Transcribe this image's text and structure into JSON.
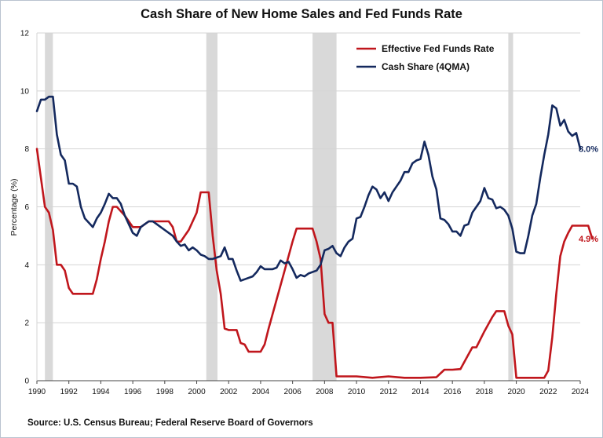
{
  "chart_data": {
    "type": "line",
    "title": "Cash Share of New Home Sales and Fed Funds Rate",
    "ylabel": "Percentage (%)",
    "xlabel": "",
    "xlim": [
      1990,
      2024
    ],
    "ylim": [
      0,
      12
    ],
    "x_ticks": [
      "1990",
      "1992",
      "1994",
      "1996",
      "1998",
      "2000",
      "2002",
      "2004",
      "2006",
      "2008",
      "2010",
      "2012",
      "2014",
      "2016",
      "2018",
      "2020",
      "2022",
      "2024"
    ],
    "y_ticks": [
      "0",
      "2",
      "4",
      "6",
      "8",
      "10",
      "12"
    ],
    "grid": "horizontal",
    "legend": "top-right",
    "recessions": [
      [
        1990.5,
        1991.0
      ],
      [
        2000.6,
        2001.3
      ],
      [
        2007.25,
        2008.75
      ],
      [
        2019.5,
        2019.8
      ]
    ],
    "series": [
      {
        "name": "Effective Fed Funds Rate",
        "color": "#c0161c",
        "end_label": "4.9%",
        "points": [
          [
            1990.0,
            8.0
          ],
          [
            1990.25,
            7.0
          ],
          [
            1990.5,
            6.0
          ],
          [
            1990.75,
            5.8
          ],
          [
            1991.0,
            5.2
          ],
          [
            1991.25,
            4.0
          ],
          [
            1991.5,
            4.0
          ],
          [
            1991.75,
            3.8
          ],
          [
            1992.0,
            3.2
          ],
          [
            1992.25,
            3.0
          ],
          [
            1992.5,
            3.0
          ],
          [
            1993.0,
            3.0
          ],
          [
            1993.5,
            3.0
          ],
          [
            1993.75,
            3.5
          ],
          [
            1994.0,
            4.2
          ],
          [
            1994.25,
            4.8
          ],
          [
            1994.5,
            5.5
          ],
          [
            1994.75,
            6.0
          ],
          [
            1995.0,
            6.0
          ],
          [
            1995.5,
            5.7
          ],
          [
            1996.0,
            5.3
          ],
          [
            1996.5,
            5.3
          ],
          [
            1997.0,
            5.5
          ],
          [
            1997.5,
            5.5
          ],
          [
            1998.0,
            5.5
          ],
          [
            1998.25,
            5.5
          ],
          [
            1998.5,
            5.3
          ],
          [
            1998.75,
            4.8
          ],
          [
            1999.0,
            4.8
          ],
          [
            1999.5,
            5.2
          ],
          [
            2000.0,
            5.8
          ],
          [
            2000.25,
            6.5
          ],
          [
            2000.5,
            6.5
          ],
          [
            2000.75,
            6.5
          ],
          [
            2001.0,
            5.0
          ],
          [
            2001.25,
            3.8
          ],
          [
            2001.5,
            3.0
          ],
          [
            2001.75,
            1.8
          ],
          [
            2002.0,
            1.75
          ],
          [
            2002.5,
            1.75
          ],
          [
            2002.75,
            1.3
          ],
          [
            2003.0,
            1.25
          ],
          [
            2003.25,
            1.0
          ],
          [
            2003.5,
            1.0
          ],
          [
            2004.0,
            1.0
          ],
          [
            2004.25,
            1.25
          ],
          [
            2004.5,
            1.8
          ],
          [
            2005.0,
            2.8
          ],
          [
            2005.5,
            3.8
          ],
          [
            2006.0,
            4.8
          ],
          [
            2006.25,
            5.25
          ],
          [
            2006.5,
            5.25
          ],
          [
            2007.0,
            5.25
          ],
          [
            2007.25,
            5.25
          ],
          [
            2007.5,
            4.8
          ],
          [
            2007.75,
            4.2
          ],
          [
            2008.0,
            2.3
          ],
          [
            2008.25,
            2.0
          ],
          [
            2008.5,
            2.0
          ],
          [
            2008.75,
            0.15
          ],
          [
            2009.0,
            0.15
          ],
          [
            2010.0,
            0.15
          ],
          [
            2011.0,
            0.1
          ],
          [
            2012.0,
            0.15
          ],
          [
            2013.0,
            0.1
          ],
          [
            2014.0,
            0.1
          ],
          [
            2015.0,
            0.12
          ],
          [
            2015.5,
            0.38
          ],
          [
            2016.0,
            0.38
          ],
          [
            2016.5,
            0.4
          ],
          [
            2017.0,
            0.9
          ],
          [
            2017.25,
            1.15
          ],
          [
            2017.5,
            1.15
          ],
          [
            2018.0,
            1.7
          ],
          [
            2018.5,
            2.2
          ],
          [
            2018.75,
            2.4
          ],
          [
            2019.0,
            2.4
          ],
          [
            2019.25,
            2.4
          ],
          [
            2019.5,
            1.9
          ],
          [
            2019.75,
            1.6
          ],
          [
            2020.0,
            0.1
          ],
          [
            2020.5,
            0.1
          ],
          [
            2021.0,
            0.1
          ],
          [
            2021.5,
            0.1
          ],
          [
            2021.75,
            0.1
          ],
          [
            2022.0,
            0.35
          ],
          [
            2022.25,
            1.5
          ],
          [
            2022.5,
            3.0
          ],
          [
            2022.75,
            4.3
          ],
          [
            2023.0,
            4.8
          ],
          [
            2023.25,
            5.1
          ],
          [
            2023.5,
            5.35
          ],
          [
            2023.75,
            5.35
          ],
          [
            2024.0,
            5.35
          ],
          [
            2024.5,
            5.35
          ],
          [
            2024.75,
            4.9
          ]
        ]
      },
      {
        "name": "Cash Share (4QMA)",
        "color": "#14295e",
        "end_label": "8.0%",
        "points": [
          [
            1990.0,
            9.3
          ],
          [
            1990.25,
            9.7
          ],
          [
            1990.5,
            9.7
          ],
          [
            1990.75,
            9.8
          ],
          [
            1991.0,
            9.8
          ],
          [
            1991.25,
            8.5
          ],
          [
            1991.5,
            7.8
          ],
          [
            1991.75,
            7.6
          ],
          [
            1992.0,
            6.8
          ],
          [
            1992.25,
            6.8
          ],
          [
            1992.5,
            6.7
          ],
          [
            1992.75,
            6.0
          ],
          [
            1993.0,
            5.6
          ],
          [
            1993.5,
            5.3
          ],
          [
            1993.75,
            5.6
          ],
          [
            1994.0,
            5.8
          ],
          [
            1994.25,
            6.1
          ],
          [
            1994.5,
            6.45
          ],
          [
            1994.75,
            6.3
          ],
          [
            1995.0,
            6.3
          ],
          [
            1995.25,
            6.1
          ],
          [
            1995.5,
            5.7
          ],
          [
            1995.75,
            5.4
          ],
          [
            1996.0,
            5.1
          ],
          [
            1996.25,
            5.0
          ],
          [
            1996.5,
            5.3
          ],
          [
            1996.75,
            5.4
          ],
          [
            1997.0,
            5.5
          ],
          [
            1997.25,
            5.5
          ],
          [
            1997.5,
            5.4
          ],
          [
            1997.75,
            5.3
          ],
          [
            1998.0,
            5.2
          ],
          [
            1998.25,
            5.1
          ],
          [
            1998.5,
            5.0
          ],
          [
            1998.75,
            4.8
          ],
          [
            1999.0,
            4.65
          ],
          [
            1999.25,
            4.7
          ],
          [
            1999.5,
            4.5
          ],
          [
            1999.75,
            4.6
          ],
          [
            2000.0,
            4.5
          ],
          [
            2000.25,
            4.35
          ],
          [
            2000.5,
            4.3
          ],
          [
            2000.75,
            4.2
          ],
          [
            2001.0,
            4.2
          ],
          [
            2001.25,
            4.25
          ],
          [
            2001.5,
            4.3
          ],
          [
            2001.75,
            4.6
          ],
          [
            2002.0,
            4.2
          ],
          [
            2002.25,
            4.2
          ],
          [
            2002.5,
            3.8
          ],
          [
            2002.75,
            3.45
          ],
          [
            2003.0,
            3.5
          ],
          [
            2003.5,
            3.6
          ],
          [
            2003.75,
            3.75
          ],
          [
            2004.0,
            3.95
          ],
          [
            2004.25,
            3.85
          ],
          [
            2004.5,
            3.85
          ],
          [
            2004.75,
            3.85
          ],
          [
            2005.0,
            3.9
          ],
          [
            2005.25,
            4.15
          ],
          [
            2005.5,
            4.05
          ],
          [
            2005.75,
            4.1
          ],
          [
            2006.0,
            3.85
          ],
          [
            2006.25,
            3.55
          ],
          [
            2006.5,
            3.65
          ],
          [
            2006.75,
            3.6
          ],
          [
            2007.0,
            3.7
          ],
          [
            2007.5,
            3.8
          ],
          [
            2007.75,
            4.0
          ],
          [
            2008.0,
            4.5
          ],
          [
            2008.25,
            4.55
          ],
          [
            2008.5,
            4.65
          ],
          [
            2008.75,
            4.4
          ],
          [
            2009.0,
            4.3
          ],
          [
            2009.25,
            4.6
          ],
          [
            2009.5,
            4.8
          ],
          [
            2009.75,
            4.9
          ],
          [
            2010.0,
            5.6
          ],
          [
            2010.25,
            5.65
          ],
          [
            2010.5,
            6.0
          ],
          [
            2010.75,
            6.4
          ],
          [
            2011.0,
            6.7
          ],
          [
            2011.25,
            6.6
          ],
          [
            2011.5,
            6.3
          ],
          [
            2011.75,
            6.5
          ],
          [
            2012.0,
            6.2
          ],
          [
            2012.25,
            6.5
          ],
          [
            2012.5,
            6.7
          ],
          [
            2012.75,
            6.9
          ],
          [
            2013.0,
            7.2
          ],
          [
            2013.25,
            7.2
          ],
          [
            2013.5,
            7.5
          ],
          [
            2013.75,
            7.6
          ],
          [
            2014.0,
            7.65
          ],
          [
            2014.25,
            8.25
          ],
          [
            2014.5,
            7.8
          ],
          [
            2014.75,
            7.05
          ],
          [
            2015.0,
            6.6
          ],
          [
            2015.25,
            5.6
          ],
          [
            2015.5,
            5.55
          ],
          [
            2015.75,
            5.4
          ],
          [
            2016.0,
            5.15
          ],
          [
            2016.25,
            5.15
          ],
          [
            2016.5,
            5.0
          ],
          [
            2016.75,
            5.35
          ],
          [
            2017.0,
            5.4
          ],
          [
            2017.25,
            5.8
          ],
          [
            2017.5,
            6.0
          ],
          [
            2017.75,
            6.2
          ],
          [
            2018.0,
            6.65
          ],
          [
            2018.25,
            6.3
          ],
          [
            2018.5,
            6.25
          ],
          [
            2018.75,
            5.95
          ],
          [
            2019.0,
            6.0
          ],
          [
            2019.25,
            5.9
          ],
          [
            2019.5,
            5.7
          ],
          [
            2019.75,
            5.25
          ],
          [
            2020.0,
            4.45
          ],
          [
            2020.25,
            4.4
          ],
          [
            2020.5,
            4.4
          ],
          [
            2020.75,
            5.0
          ],
          [
            2021.0,
            5.7
          ],
          [
            2021.25,
            6.1
          ],
          [
            2021.5,
            7.0
          ],
          [
            2021.75,
            7.8
          ],
          [
            2022.0,
            8.5
          ],
          [
            2022.25,
            9.5
          ],
          [
            2022.5,
            9.4
          ],
          [
            2022.75,
            8.8
          ],
          [
            2023.0,
            9.0
          ],
          [
            2023.25,
            8.6
          ],
          [
            2023.5,
            8.45
          ],
          [
            2023.75,
            8.55
          ],
          [
            2024.0,
            8.0
          ]
        ]
      }
    ]
  },
  "source": "Source: U.S. Census Bureau; Federal Reserve Board of Governors"
}
